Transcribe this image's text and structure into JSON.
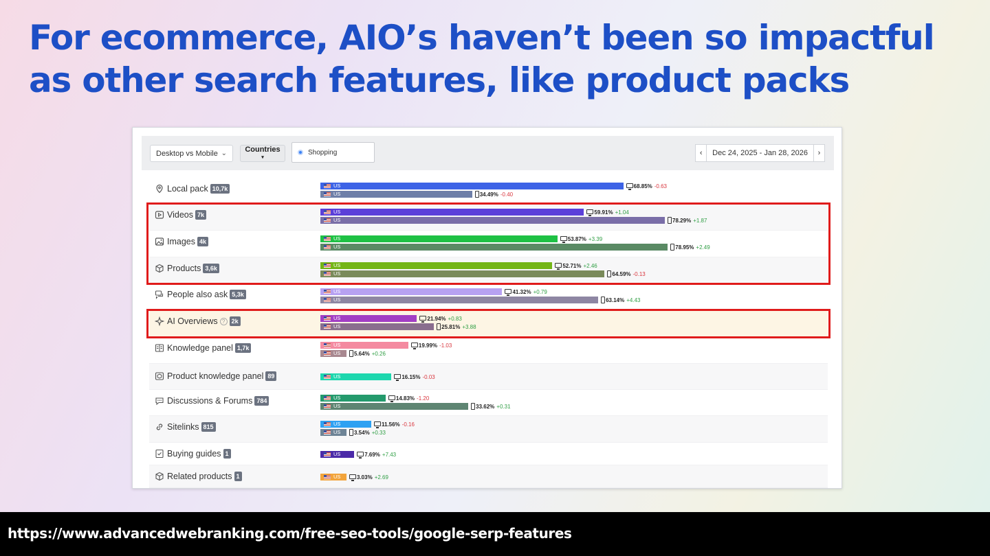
{
  "title": "For ecommerce, AIO’s haven’t been so impactful as other search features, like product packs",
  "toolbar": {
    "device_select": "Desktop vs Mobile",
    "countries_label": "Countries",
    "shopping_label": "Shopping",
    "date_range": "Dec 24, 2025 - Jan 28, 2026",
    "prev_icon": "chevron-left-icon",
    "next_icon": "chevron-right-icon"
  },
  "chart_data": {
    "type": "bar",
    "title": "",
    "country": "US",
    "series_meta": [
      "desktop",
      "mobile"
    ],
    "rows": [
      {
        "feature": "Local pack",
        "icon": "pin-icon",
        "count": "10,7k",
        "color": "#3d63e6",
        "color2": "#6e7fa8",
        "desktop": {
          "value": 68.85,
          "label": "68.85%",
          "delta": "-0.63"
        },
        "mobile": {
          "value": 34.49,
          "label": "34.49%",
          "delta": "-0.40"
        }
      },
      {
        "feature": "Videos",
        "icon": "video-icon",
        "count": "7k",
        "color": "#5b3fd9",
        "color2": "#7a6ea8",
        "desktop": {
          "value": 59.91,
          "label": "59.91%",
          "delta": "+1.04"
        },
        "mobile": {
          "value": 78.29,
          "label": "78.29%",
          "delta": "+1.87"
        }
      },
      {
        "feature": "Images",
        "icon": "image-icon",
        "count": "4k",
        "color": "#1ec144",
        "color2": "#5a8a64",
        "desktop": {
          "value": 53.87,
          "label": "53.87%",
          "delta": "+3.39"
        },
        "mobile": {
          "value": 78.95,
          "label": "78.95%",
          "delta": "+2.49"
        }
      },
      {
        "feature": "Products",
        "icon": "box-icon",
        "count": "3,6k",
        "color": "#74b516",
        "color2": "#7a8a5a",
        "desktop": {
          "value": 52.71,
          "label": "52.71%",
          "delta": "+2.46"
        },
        "mobile": {
          "value": 64.59,
          "label": "64.59%",
          "delta": "-0.13"
        }
      },
      {
        "feature": "People also ask",
        "icon": "chat-icon",
        "count": "5,3k",
        "color": "#b7a1f2",
        "color2": "#8e86a3",
        "desktop": {
          "value": 41.32,
          "label": "41.32%",
          "delta": "+0.79"
        },
        "mobile": {
          "value": 63.14,
          "label": "63.14%",
          "delta": "+4.43"
        }
      },
      {
        "feature": "AI Overviews",
        "icon": "sparkle-icon",
        "count": "2k",
        "help": "?",
        "color": "#a23ec4",
        "color2": "#8a6e8e",
        "desktop": {
          "value": 21.94,
          "label": "21.94%",
          "delta": "+0.83"
        },
        "mobile": {
          "value": 25.81,
          "label": "25.81%",
          "delta": "+3.88"
        }
      },
      {
        "feature": "Knowledge panel",
        "icon": "panel-icon",
        "count": "1,7k",
        "color": "#f48aa0",
        "color2": "#a88890",
        "desktop": {
          "value": 19.99,
          "label": "19.99%",
          "delta": "-1.03"
        },
        "mobile": {
          "value": 5.64,
          "label": "5.64%",
          "delta": "+0.26"
        }
      },
      {
        "feature": "Product knowledge panel",
        "icon": "product-panel-icon",
        "count": "89",
        "color": "#1dd7ae",
        "desktop": {
          "value": 16.15,
          "label": "16.15%",
          "delta": "-0.03"
        }
      },
      {
        "feature": "Discussions & Forums",
        "icon": "forum-icon",
        "count": "784",
        "color": "#249a6c",
        "color2": "#5e8572",
        "desktop": {
          "value": 14.83,
          "label": "14.83%",
          "delta": "-1.20"
        },
        "mobile": {
          "value": 33.62,
          "label": "33.62%",
          "delta": "+0.31"
        }
      },
      {
        "feature": "Sitelinks",
        "icon": "link-icon",
        "count": "815",
        "color": "#2ea1f2",
        "color2": "#6e8496",
        "desktop": {
          "value": 11.56,
          "label": "11.56%",
          "delta": "-0.16"
        },
        "mobile": {
          "value": 3.54,
          "label": "3.54%",
          "delta": "+0.33"
        }
      },
      {
        "feature": "Buying guides",
        "icon": "guide-icon",
        "count": "1",
        "color": "#4b2aa8",
        "desktop": {
          "value": 7.69,
          "label": "7.69%",
          "delta": "+7.43"
        }
      },
      {
        "feature": "Related products",
        "icon": "box-icon",
        "count": "1",
        "color": "#f2a43b",
        "desktop": {
          "value": 3.03,
          "label": "3.03%",
          "delta": "+2.69"
        }
      }
    ]
  },
  "highlights": [
    {
      "from": "Videos",
      "to": "Products"
    },
    {
      "from": "AI Overviews",
      "to": "AI Overviews"
    }
  ],
  "footer_url": "https://www.advancedwebranking.com/free-seo-tools/google-serp-features"
}
